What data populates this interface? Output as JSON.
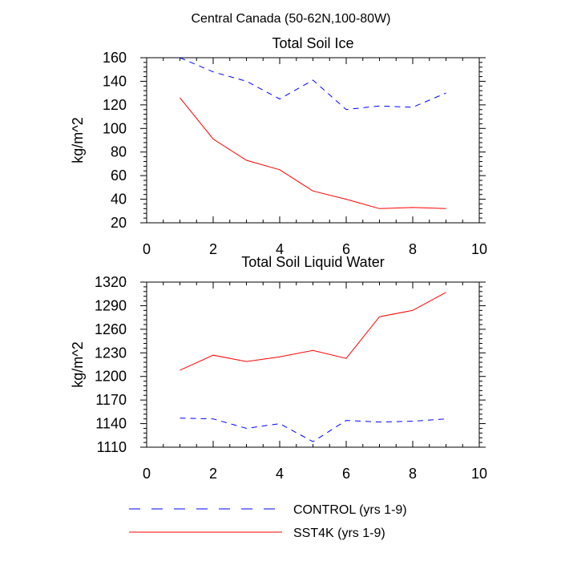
{
  "figure_title": "Central Canada (50-62N,100-80W)",
  "legend": [
    {
      "label": "CONTROL (yrs 1-9)",
      "color": "#0000ff",
      "style": "dashed"
    },
    {
      "label": "SST4K (yrs 1-9)",
      "color": "#ff0000",
      "style": "solid"
    }
  ],
  "chart_data": [
    {
      "type": "line",
      "title": "Total Soil Ice",
      "xlabel": "",
      "ylabel": "kg/m^2",
      "xlim": [
        0,
        10
      ],
      "ylim": [
        20,
        160
      ],
      "xticks": [
        0,
        2,
        4,
        6,
        8,
        10
      ],
      "yticks": [
        20,
        40,
        60,
        80,
        100,
        120,
        140,
        160
      ],
      "x": [
        1,
        2,
        3,
        4,
        5,
        6,
        7,
        8,
        9
      ],
      "series": [
        {
          "name": "CONTROL (yrs 1-9)",
          "color": "#0000ff",
          "style": "dashed",
          "values": [
            160,
            148,
            140,
            125,
            141,
            116,
            119,
            118,
            130
          ]
        },
        {
          "name": "SST4K (yrs 1-9)",
          "color": "#ff0000",
          "style": "solid",
          "values": [
            126,
            91,
            73,
            65,
            47,
            40,
            32,
            33,
            32
          ]
        }
      ]
    },
    {
      "type": "line",
      "title": "Total Soil Liquid Water",
      "xlabel": "",
      "ylabel": "kg/m^2",
      "xlim": [
        0,
        10
      ],
      "ylim": [
        1110,
        1320
      ],
      "xticks": [
        0,
        2,
        4,
        6,
        8,
        10
      ],
      "yticks": [
        1110,
        1140,
        1170,
        1200,
        1230,
        1260,
        1290,
        1320
      ],
      "x": [
        1,
        2,
        3,
        4,
        5,
        6,
        7,
        8,
        9
      ],
      "series": [
        {
          "name": "CONTROL (yrs 1-9)",
          "color": "#0000ff",
          "style": "dashed",
          "values": [
            1147,
            1146,
            1134,
            1140,
            1117,
            1144,
            1142,
            1143,
            1146
          ]
        },
        {
          "name": "SST4K (yrs 1-9)",
          "color": "#ff0000",
          "style": "solid",
          "values": [
            1208,
            1227,
            1219,
            1225,
            1233,
            1223,
            1276,
            1284,
            1307
          ]
        }
      ]
    }
  ]
}
